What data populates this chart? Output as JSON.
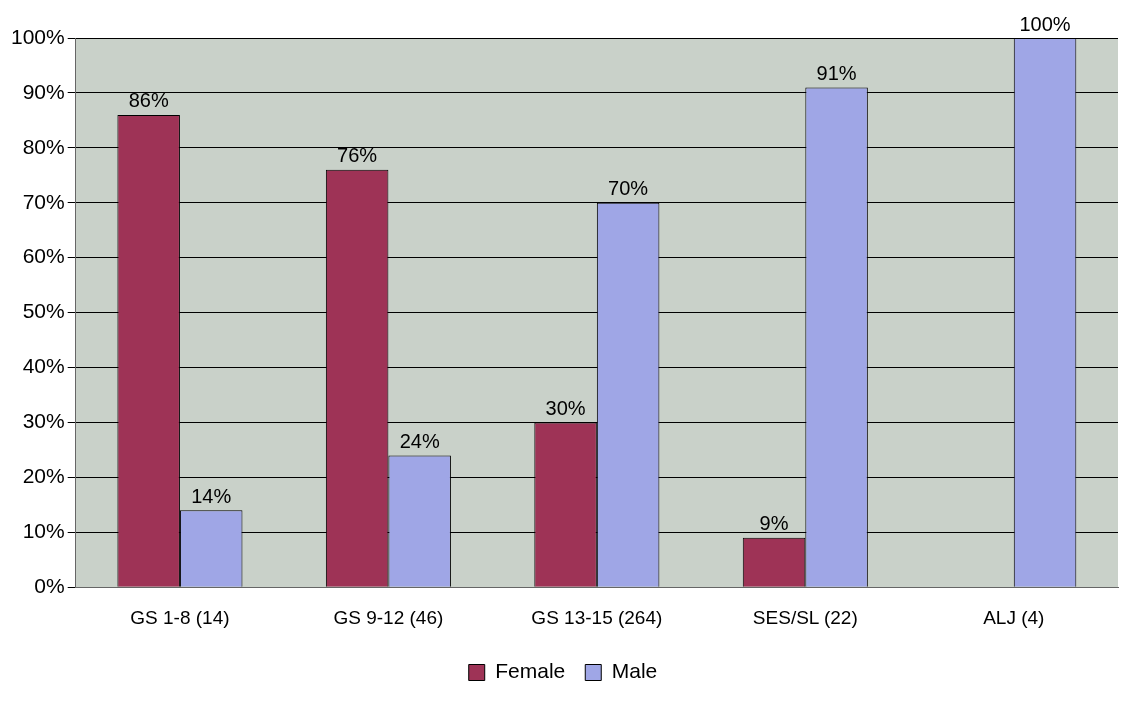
{
  "chart_data": {
    "type": "bar",
    "categories": [
      "GS 1-8 (14)",
      "GS 9-12 (46)",
      "GS 13-15 (264)",
      "SES/SL (22)",
      "ALJ (4)"
    ],
    "series": [
      {
        "name": "Female",
        "color": "#9e3356",
        "values": [
          86,
          76,
          30,
          9,
          null
        ],
        "value_labels": [
          "86%",
          "76%",
          "30%",
          "9%",
          null
        ]
      },
      {
        "name": "Male",
        "color": "#9fa6e6",
        "values": [
          14,
          24,
          70,
          91,
          100
        ],
        "value_labels": [
          "14%",
          "24%",
          "70%",
          "91%",
          "100%"
        ]
      }
    ],
    "ylim": [
      0,
      100
    ],
    "yticks": [
      {
        "value": 0,
        "label": "0%"
      },
      {
        "value": 10,
        "label": "10%"
      },
      {
        "value": 20,
        "label": "20%"
      },
      {
        "value": 30,
        "label": "30%"
      },
      {
        "value": 40,
        "label": "40%"
      },
      {
        "value": 50,
        "label": "50%"
      },
      {
        "value": 60,
        "label": "60%"
      },
      {
        "value": 70,
        "label": "70%"
      },
      {
        "value": 80,
        "label": "80%"
      },
      {
        "value": 90,
        "label": "90%"
      },
      {
        "value": 100,
        "label": "100%"
      }
    ],
    "grid": "y",
    "legend": "bottom"
  }
}
